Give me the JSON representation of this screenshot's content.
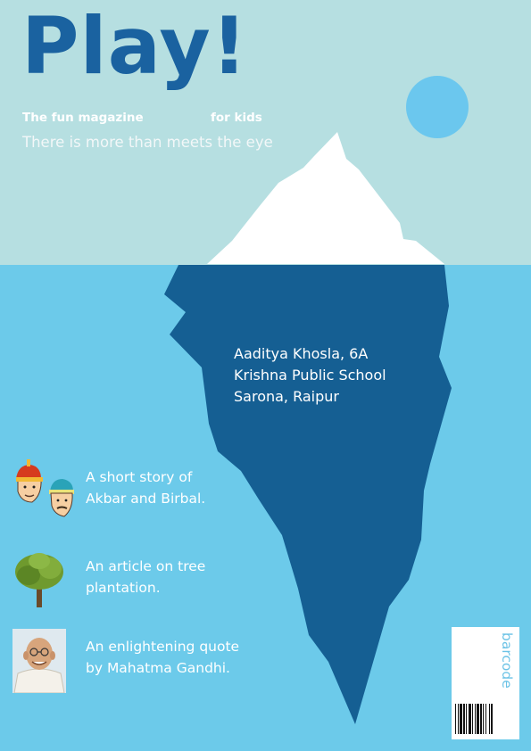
{
  "masthead": {
    "title": "Play!",
    "tagline_left": "The fun magazine",
    "tagline_right": "for kids",
    "headline": "There is more than meets the eye"
  },
  "author": {
    "lines": [
      "Aaditya Khosla, 6A",
      "Krishna Public School",
      "Sarona, Raipur"
    ]
  },
  "features": [
    {
      "icon": "akbar-birbal-icon",
      "lines": [
        "A short story of",
        "Akbar and Birbal."
      ]
    },
    {
      "icon": "tree-icon",
      "lines": [
        "An article on tree",
        "plantation."
      ]
    },
    {
      "icon": "gandhi-portrait-icon",
      "lines": [
        "An enlightening quote",
        "by Mahatma Gandhi."
      ]
    }
  ],
  "barcode": {
    "label": "barcode"
  },
  "colors": {
    "sky": "#b6dfe1",
    "sea": "#6ccaea",
    "iceberg_underwater": "#155f93",
    "iceberg_top": "#ffffff",
    "sun": "#6bc7ee",
    "masthead": "#1a62a0"
  }
}
